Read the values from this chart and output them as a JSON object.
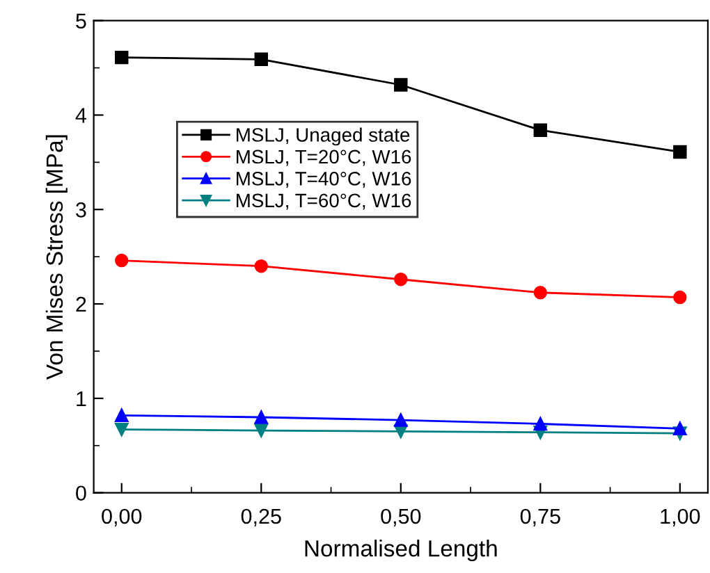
{
  "chart_data": {
    "type": "line",
    "xlabel": "Normalised Length",
    "ylabel": "Von Mises Stress [MPa]",
    "x": [
      0,
      0.25,
      0.5,
      0.75,
      1.0
    ],
    "series": [
      {
        "name": "MSLJ, Unaged state",
        "color": "#000000",
        "marker": "square",
        "values": [
          4.61,
          4.59,
          4.32,
          3.84,
          3.61
        ]
      },
      {
        "name": "MSLJ, T=20°C, W16",
        "color": "#ff0000",
        "marker": "circle",
        "values": [
          2.46,
          2.4,
          2.26,
          2.12,
          2.07
        ]
      },
      {
        "name": "MSLJ, T=40°C, W16",
        "color": "#0000ff",
        "marker": "triangle",
        "values": [
          0.82,
          0.8,
          0.77,
          0.73,
          0.68
        ]
      },
      {
        "name": "MSLJ, T=60°C, W16",
        "color": "#008080",
        "marker": "triangle_down",
        "values": [
          0.67,
          0.66,
          0.65,
          0.64,
          0.63
        ]
      }
    ],
    "xlim": [
      -0.05,
      1.05
    ],
    "xticks": [
      {
        "value": 0,
        "label": "0,00"
      },
      {
        "value": 0.25,
        "label": "0,25"
      },
      {
        "value": 0.5,
        "label": "0,50"
      },
      {
        "value": 0.75,
        "label": "0,75"
      },
      {
        "value": 1.0,
        "label": "1,00"
      }
    ],
    "ylim": [
      0,
      5
    ],
    "yticks": [
      0,
      1,
      2,
      3,
      4,
      5
    ],
    "grid": false,
    "legend": "center left"
  }
}
